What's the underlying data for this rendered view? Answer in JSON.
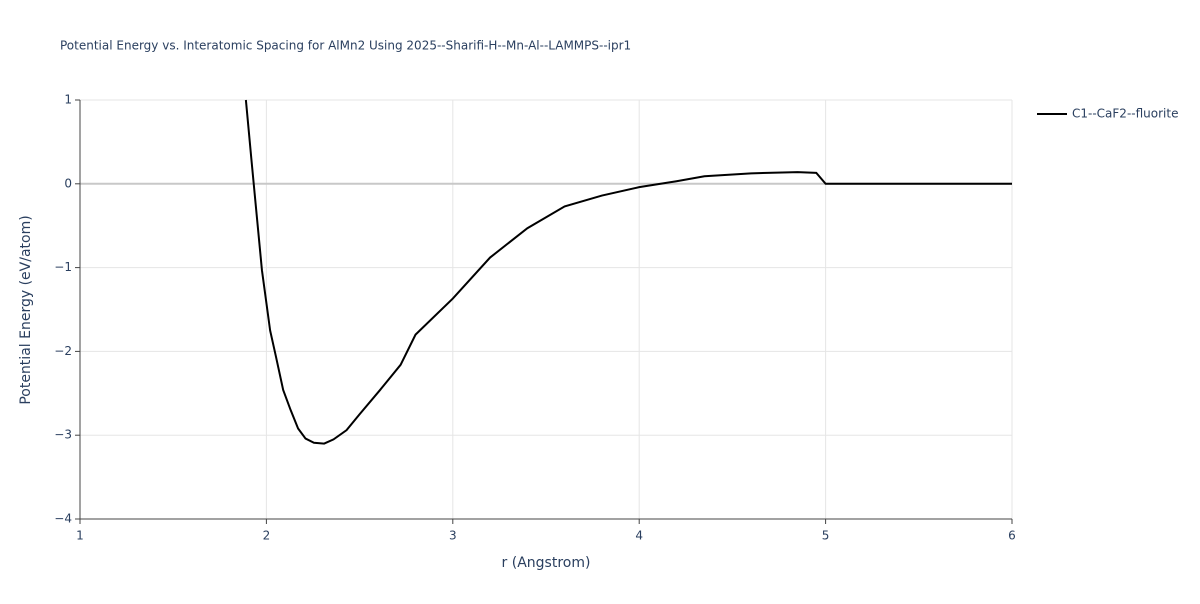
{
  "chart_data": {
    "type": "line",
    "title": "Potential Energy vs. Interatomic Spacing for AlMn2 Using 2025--Sharifi-H--Mn-Al--LAMMPS--ipr1",
    "x_label": "r (Angstrom)",
    "y_label": "Potential Energy (eV/atom)",
    "xlim": [
      1,
      6
    ],
    "ylim": [
      -4,
      1
    ],
    "xticks": [
      1,
      2,
      3,
      4,
      5,
      6
    ],
    "yticks": [
      {
        "value": -4,
        "label": "−4"
      },
      {
        "value": -3,
        "label": "−3"
      },
      {
        "value": -2,
        "label": "−2"
      },
      {
        "value": -1,
        "label": "−1"
      },
      0,
      1
    ],
    "grid": true,
    "legend_position": "top-right",
    "x": [
      1.89,
      1.92,
      1.976,
      2.02,
      2.05,
      2.09,
      2.13,
      2.17,
      2.21,
      2.255,
      2.31,
      2.36,
      2.43,
      2.5,
      2.61,
      2.72,
      2.8,
      3.0,
      3.2,
      3.4,
      3.6,
      3.8,
      4.0,
      4.2,
      4.35,
      4.6,
      4.85,
      4.95,
      5.0,
      6.0
    ],
    "series": [
      {
        "name": "C1--CaF2--fluorite",
        "color": "#000000",
        "values": [
          1.0,
          0.28,
          -1.03,
          -1.75,
          -2.05,
          -2.46,
          -2.7,
          -2.92,
          -3.04,
          -3.09,
          -3.1,
          -3.05,
          -2.94,
          -2.75,
          -2.46,
          -2.16,
          -1.8,
          -1.37,
          -0.88,
          -0.53,
          -0.27,
          -0.14,
          -0.04,
          0.03,
          0.09,
          0.125,
          0.14,
          0.13,
          0,
          0
        ]
      }
    ]
  }
}
